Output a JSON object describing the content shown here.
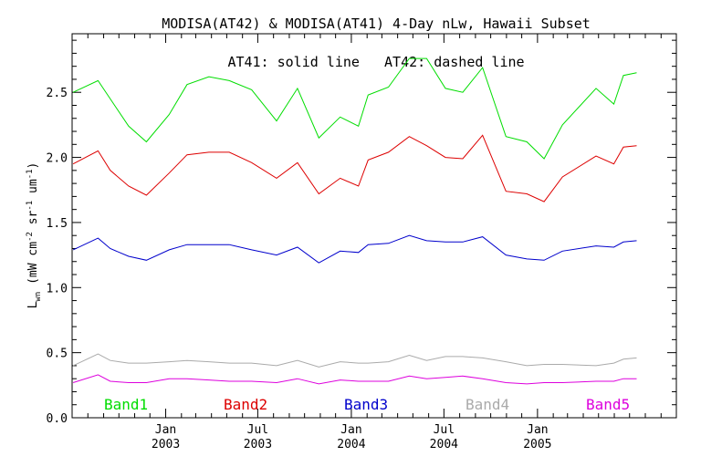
{
  "chart_data": {
    "type": "line",
    "title": "MODISA(AT42) & MODISA(AT41) 4-Day nLw, Hawaii Subset",
    "annotation": "AT41: solid line   AT42: dashed line",
    "ylabel": "L_wn (mW cm^-2 sr^-1 um^-1)",
    "ylabel_main": "L",
    "ylabel_sub": "wn",
    "ylabel_rest": " (mW cm",
    "ylabel_sup1": "-2",
    "ylabel_mid": " sr",
    "ylabel_sup2": "-1",
    "ylabel_mid2": " um",
    "ylabel_sup3": "-1",
    "ylabel_end": ")",
    "ylim": [
      0.0,
      2.95
    ],
    "xlim": [
      "2002-07-01",
      "2005-10-01"
    ],
    "grid": false,
    "yticks": [
      {
        "value": 0.0,
        "label": "0.0"
      },
      {
        "value": 0.5,
        "label": "0.5"
      },
      {
        "value": 1.0,
        "label": "1.0"
      },
      {
        "value": 1.5,
        "label": "1.5"
      },
      {
        "value": 2.0,
        "label": "2.0"
      },
      {
        "value": 2.5,
        "label": "2.5"
      }
    ],
    "xticks": [
      {
        "date": "2003-01-01",
        "month": "Jan",
        "year": "2003"
      },
      {
        "date": "2003-07-01",
        "month": "Jul",
        "year": "2003"
      },
      {
        "date": "2004-01-01",
        "month": "Jan",
        "year": "2004"
      },
      {
        "date": "2004-07-01",
        "month": "Jul",
        "year": "2004"
      },
      {
        "date": "2005-01-01",
        "month": "Jan",
        "year": "2005"
      }
    ],
    "x": [
      "2002-07-03",
      "2002-08-21",
      "2002-09-14",
      "2002-10-20",
      "2002-11-24",
      "2003-01-08",
      "2003-02-12",
      "2003-03-27",
      "2003-05-06",
      "2003-06-19",
      "2003-08-07",
      "2003-09-17",
      "2003-10-29",
      "2003-12-10",
      "2004-01-15",
      "2004-02-03",
      "2004-03-14",
      "2004-04-24",
      "2004-05-28",
      "2004-07-04",
      "2004-08-07",
      "2004-09-15",
      "2004-10-31",
      "2004-12-11",
      "2005-01-14",
      "2005-02-19",
      "2005-04-26",
      "2005-05-31",
      "2005-06-19",
      "2005-07-15"
    ],
    "series": [
      {
        "name": "Band1",
        "color": "#00dd00",
        "values": [
          2.5,
          2.59,
          2.45,
          2.24,
          2.12,
          2.33,
          2.56,
          2.62,
          2.59,
          2.52,
          2.28,
          2.53,
          2.15,
          2.31,
          2.24,
          2.48,
          2.54,
          2.76,
          2.76,
          2.53,
          2.5,
          2.69,
          2.16,
          2.12,
          1.99,
          2.25,
          2.53,
          2.41,
          2.63,
          2.65
        ]
      },
      {
        "name": "Band2",
        "color": "#dd0000",
        "values": [
          1.95,
          2.05,
          1.9,
          1.78,
          1.71,
          1.88,
          2.02,
          2.04,
          2.04,
          1.96,
          1.84,
          1.96,
          1.72,
          1.84,
          1.78,
          1.98,
          2.04,
          2.16,
          2.09,
          2.0,
          1.99,
          2.17,
          1.74,
          1.72,
          1.66,
          1.85,
          2.01,
          1.95,
          2.08,
          2.09
        ]
      },
      {
        "name": "Band3",
        "color": "#0000cc",
        "values": [
          1.29,
          1.38,
          1.3,
          1.24,
          1.21,
          1.29,
          1.33,
          1.33,
          1.33,
          1.29,
          1.25,
          1.31,
          1.19,
          1.28,
          1.27,
          1.33,
          1.34,
          1.4,
          1.36,
          1.35,
          1.35,
          1.39,
          1.25,
          1.22,
          1.21,
          1.28,
          1.32,
          1.31,
          1.35,
          1.36
        ]
      },
      {
        "name": "Band4",
        "color": "#aaaaaa",
        "values": [
          0.4,
          0.49,
          0.44,
          0.42,
          0.42,
          0.43,
          0.44,
          0.43,
          0.42,
          0.42,
          0.4,
          0.44,
          0.39,
          0.43,
          0.42,
          0.42,
          0.43,
          0.48,
          0.44,
          0.47,
          0.47,
          0.46,
          0.43,
          0.4,
          0.41,
          0.41,
          0.4,
          0.42,
          0.45,
          0.46
        ]
      },
      {
        "name": "Band5",
        "color": "#dd00dd",
        "values": [
          0.27,
          0.33,
          0.28,
          0.27,
          0.27,
          0.3,
          0.3,
          0.29,
          0.28,
          0.28,
          0.27,
          0.3,
          0.26,
          0.29,
          0.28,
          0.28,
          0.28,
          0.32,
          0.3,
          0.31,
          0.32,
          0.3,
          0.27,
          0.26,
          0.27,
          0.27,
          0.28,
          0.28,
          0.3,
          0.3
        ]
      }
    ]
  }
}
